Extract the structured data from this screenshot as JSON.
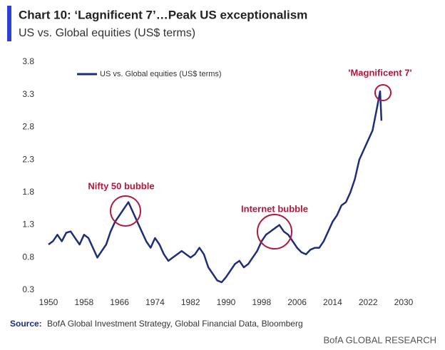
{
  "chart_data": {
    "type": "line",
    "title": "Chart 10: ‘Lagnificent 7’…Peak US exceptionalism",
    "subtitle": "US vs. Global equities (US$ terms)",
    "x": [
      1950,
      1951,
      1952,
      1953,
      1954,
      1955,
      1956,
      1957,
      1958,
      1959,
      1960,
      1961,
      1962,
      1963,
      1964,
      1965,
      1966,
      1967,
      1968,
      1969,
      1970,
      1971,
      1972,
      1973,
      1974,
      1975,
      1976,
      1977,
      1978,
      1979,
      1980,
      1981,
      1982,
      1983,
      1984,
      1985,
      1986,
      1987,
      1988,
      1989,
      1990,
      1991,
      1992,
      1993,
      1994,
      1995,
      1996,
      1997,
      1998,
      1999,
      2000,
      2001,
      2002,
      2003,
      2004,
      2005,
      2006,
      2007,
      2008,
      2009,
      2010,
      2011,
      2012,
      2013,
      2014,
      2015,
      2016,
      2017,
      2018,
      2019,
      2020,
      2021,
      2022,
      2023,
      2024,
      2024.7,
      2025
    ],
    "series": [
      {
        "name": "US vs. Global equities (US$ terms)",
        "color": "#1f2e7a",
        "values": [
          1.0,
          1.05,
          1.15,
          1.05,
          1.18,
          1.2,
          1.1,
          1.0,
          1.15,
          1.1,
          0.95,
          0.8,
          0.9,
          1.0,
          1.2,
          1.35,
          1.45,
          1.55,
          1.65,
          1.5,
          1.35,
          1.2,
          1.05,
          0.95,
          1.1,
          1.0,
          0.85,
          0.75,
          0.8,
          0.85,
          0.9,
          0.85,
          0.8,
          0.85,
          0.95,
          0.85,
          0.65,
          0.55,
          0.45,
          0.42,
          0.5,
          0.6,
          0.7,
          0.75,
          0.65,
          0.7,
          0.8,
          0.9,
          1.05,
          1.15,
          1.2,
          1.25,
          1.3,
          1.2,
          1.15,
          1.05,
          0.95,
          0.88,
          0.85,
          0.92,
          0.95,
          0.95,
          1.05,
          1.2,
          1.35,
          1.45,
          1.6,
          1.65,
          1.8,
          2.0,
          2.3,
          2.45,
          2.6,
          2.75,
          3.1,
          3.35,
          2.9
        ]
      }
    ],
    "xlim": [
      1950,
      2030
    ],
    "xticks": [
      1950,
      1958,
      1966,
      1974,
      1982,
      1990,
      1998,
      2006,
      2014,
      2022,
      2030
    ],
    "ylim": [
      0.3,
      3.8
    ],
    "yticks": [
      0.3,
      0.8,
      1.3,
      1.8,
      2.3,
      2.8,
      3.3,
      3.8
    ],
    "grid": false,
    "annotations": [
      "Nifty 50 bubble",
      "Internet bubble",
      "'Magnificent 7'"
    ],
    "annotation_color": "#b0183d",
    "source_label": "Source:",
    "source_text": "BofA Global Investment Strategy, Global Financial Data, Bloomberg",
    "brand": "BofA GLOBAL RESEARCH"
  }
}
